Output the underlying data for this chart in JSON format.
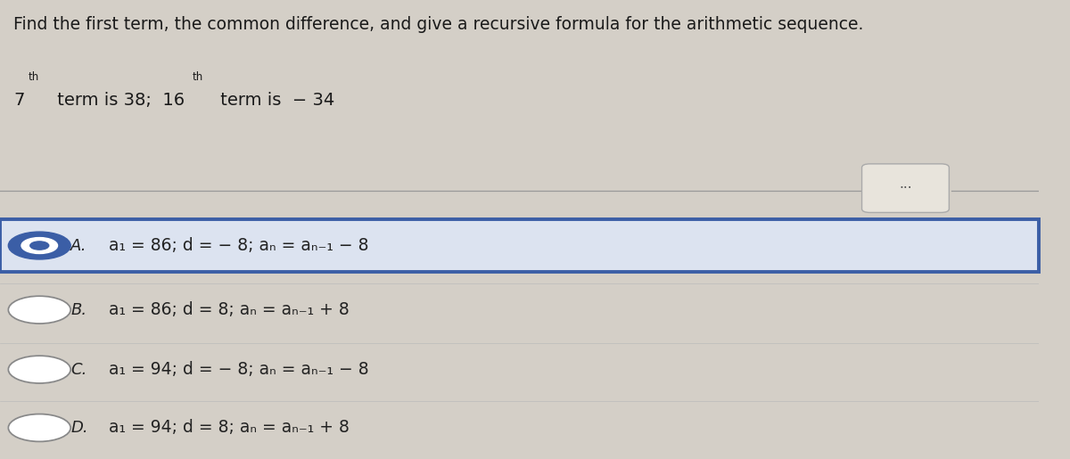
{
  "background_color": "#d4cfc7",
  "title_text": "Find the first term, the common difference, and give a recursive formula for the arithmetic sequence.",
  "options": [
    {
      "label": "A.",
      "text": "a₁ = 86; d = − 8; aₙ = aₙ₋₁ − 8",
      "selected": true
    },
    {
      "label": "B.",
      "text": "a₁ = 86; d = 8; aₙ = aₙ₋₁ + 8",
      "selected": false
    },
    {
      "label": "C.",
      "text": "a₁ = 94; d = − 8; aₙ = aₙ₋₁ − 8",
      "selected": false
    },
    {
      "label": "D.",
      "text": "a₁ = 94; d = 8; aₙ = aₙ₋₁ + 8",
      "selected": false
    }
  ],
  "selected_box_color": "#3b5ea6",
  "selected_bg_color": "#dce3f0",
  "separator_color": "#999999",
  "dots_button_bg": "#e8e4dc",
  "dots_button_edge": "#aaaaaa",
  "text_color": "#1a1a1a",
  "option_text_color": "#222222",
  "radio_selected_color": "#3b5ea6",
  "radio_unselected_color": "#888888"
}
